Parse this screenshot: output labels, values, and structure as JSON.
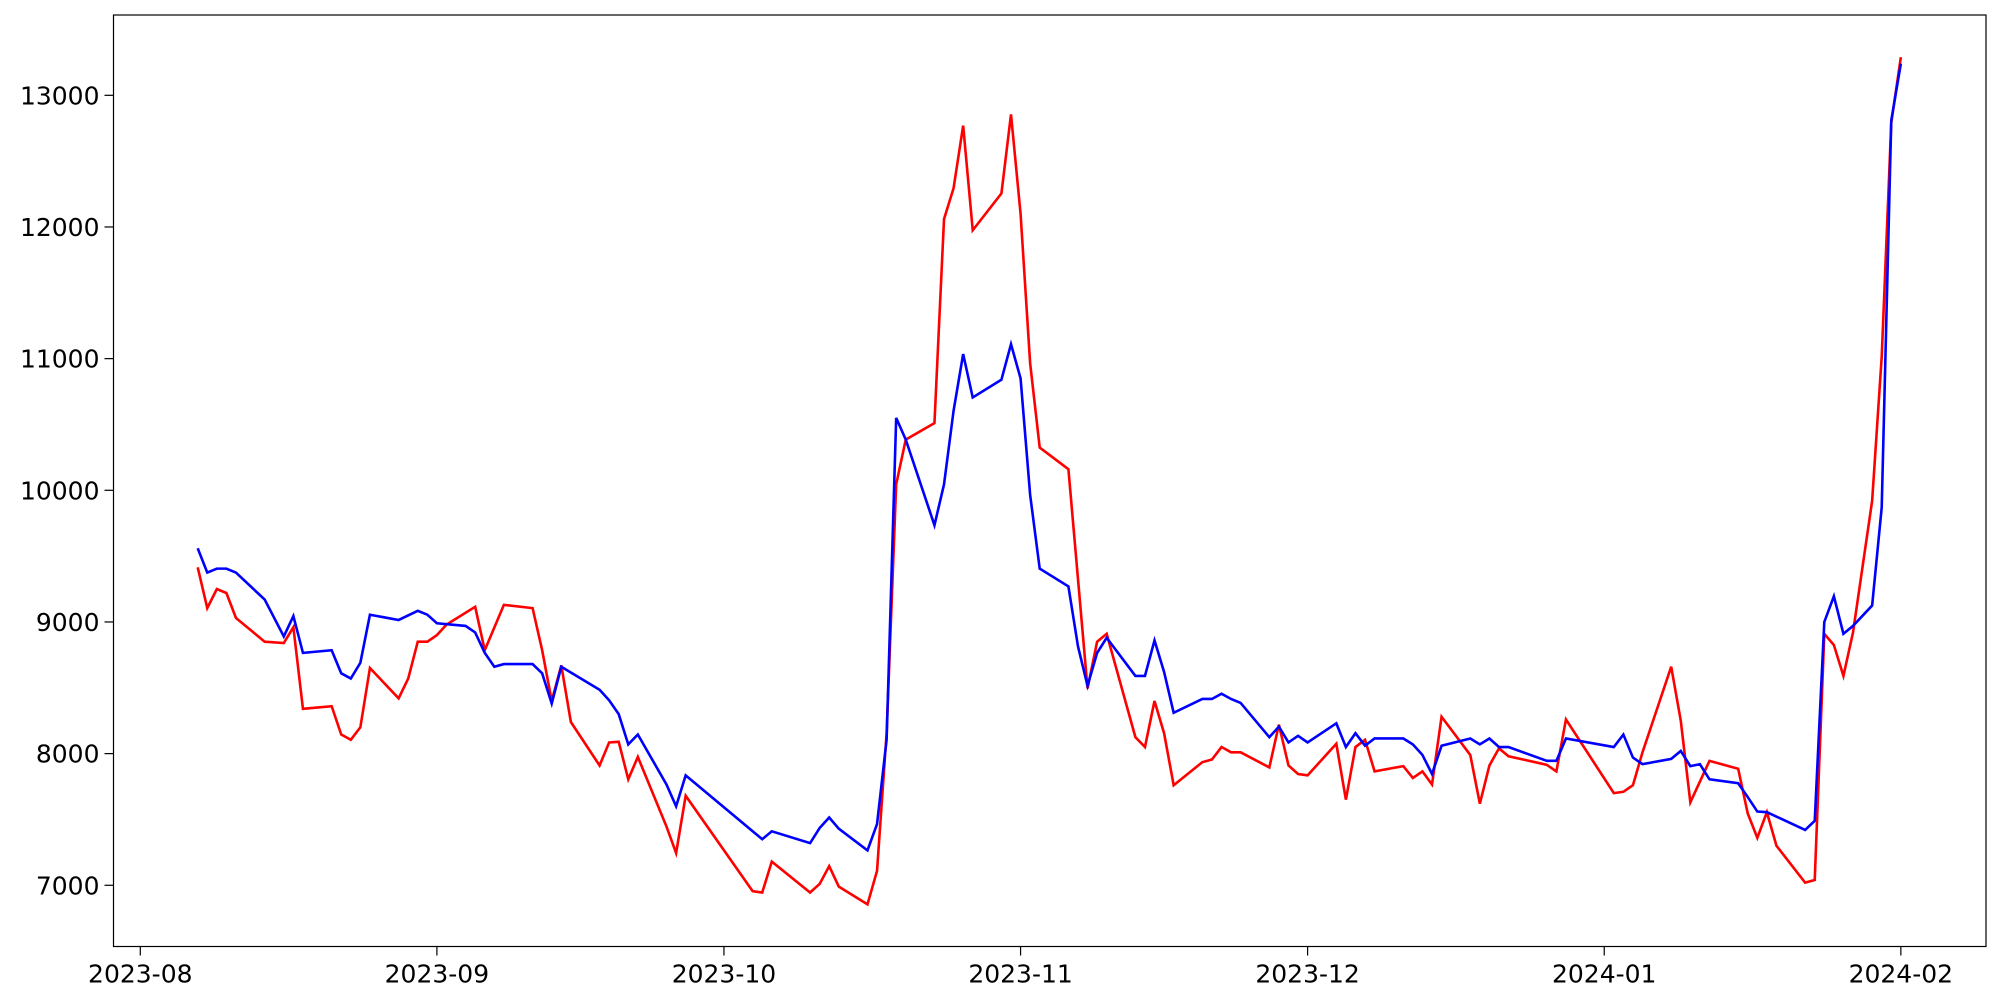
{
  "chart_data": {
    "type": "line",
    "xlim": [
      -2.8,
      192.9
    ],
    "xticks": [
      {
        "value": 0,
        "label": "2023-08"
      },
      {
        "value": 31,
        "label": "2023-09"
      },
      {
        "value": 61,
        "label": "2023-10"
      },
      {
        "value": 92,
        "label": "2023-11"
      },
      {
        "value": 122,
        "label": "2023-12"
      },
      {
        "value": 153,
        "label": "2024-01"
      },
      {
        "value": 184,
        "label": "2024-02"
      }
    ],
    "ylim": [
      6535,
      13610
    ],
    "yticks": [
      7000,
      8000,
      9000,
      10000,
      11000,
      12000,
      13000
    ],
    "grid": false,
    "series": [
      {
        "color": "#ff0000",
        "x": [
          6,
          7,
          8,
          9,
          10,
          13,
          15,
          16,
          17,
          20,
          21,
          22,
          23,
          24,
          27,
          28,
          29,
          30,
          31,
          32,
          35,
          36,
          38,
          41,
          42,
          43,
          44,
          45,
          48,
          49,
          50,
          51,
          52,
          55,
          56,
          57,
          64,
          65,
          66,
          70,
          71,
          72,
          73,
          76,
          77,
          78,
          79,
          80,
          83,
          84,
          85,
          86,
          87,
          90,
          91,
          92,
          93,
          94,
          97,
          99,
          100,
          101,
          104,
          105,
          106,
          107,
          108,
          111,
          112,
          113,
          114,
          115,
          118,
          119,
          120,
          121,
          122,
          125,
          126,
          127,
          128,
          129,
          132,
          133,
          134,
          135,
          136,
          139,
          140,
          141,
          142,
          143,
          147,
          148,
          149,
          154,
          155,
          156,
          157,
          160,
          161,
          162,
          164,
          167,
          168,
          169,
          170,
          171,
          174,
          175,
          176,
          177,
          178,
          179,
          181,
          182,
          183,
          184
        ],
        "values": [
          9415,
          9105,
          9250,
          9220,
          9030,
          8850,
          8840,
          8960,
          8340,
          8360,
          8145,
          8105,
          8200,
          8650,
          8420,
          8570,
          8850,
          8850,
          8900,
          8980,
          9115,
          8785,
          9130,
          9105,
          8785,
          8400,
          8670,
          8240,
          7910,
          8085,
          8090,
          7805,
          7975,
          7445,
          7245,
          7680,
          6955,
          6945,
          7180,
          6945,
          7010,
          7145,
          6990,
          6855,
          7110,
          8155,
          10045,
          10385,
          10510,
          12060,
          12295,
          12770,
          11975,
          12255,
          12855,
          12100,
          10965,
          10325,
          10160,
          8495,
          8850,
          8910,
          8125,
          8050,
          8400,
          8155,
          7760,
          7935,
          7955,
          8050,
          8010,
          8010,
          7895,
          8220,
          7910,
          7845,
          7835,
          8075,
          7650,
          8050,
          8105,
          7865,
          7905,
          7815,
          7865,
          7765,
          8280,
          7990,
          7620,
          7910,
          8040,
          7980,
          7915,
          7865,
          8260,
          7700,
          7710,
          7760,
          8010,
          8660,
          8250,
          7630,
          7945,
          7885,
          7545,
          7360,
          7555,
          7300,
          7020,
          7040,
          8910,
          8825,
          8590,
          8920,
          9920,
          11015,
          12790,
          13290
        ]
      },
      {
        "color": "#0000ff",
        "x": [
          6,
          7,
          8,
          9,
          10,
          13,
          15,
          16,
          17,
          20,
          21,
          22,
          23,
          24,
          27,
          29,
          30,
          31,
          34,
          35,
          36,
          37,
          38,
          41,
          42,
          43,
          44,
          48,
          49,
          50,
          51,
          52,
          55,
          56,
          57,
          64,
          65,
          66,
          70,
          71,
          72,
          73,
          76,
          77,
          78,
          79,
          80,
          83,
          84,
          85,
          86,
          87,
          90,
          91,
          92,
          93,
          94,
          97,
          98,
          99,
          100,
          101,
          104,
          105,
          106,
          107,
          108,
          111,
          112,
          113,
          114,
          115,
          118,
          119,
          120,
          121,
          122,
          125,
          126,
          127,
          128,
          129,
          132,
          133,
          134,
          135,
          136,
          139,
          140,
          141,
          142,
          143,
          147,
          148,
          149,
          154,
          155,
          156,
          157,
          160,
          161,
          162,
          163,
          164,
          167,
          168,
          169,
          170,
          174,
          175,
          176,
          177,
          178,
          179,
          181,
          182,
          183,
          184
        ],
        "values": [
          9560,
          9375,
          9405,
          9405,
          9375,
          9170,
          8890,
          9045,
          8765,
          8785,
          8610,
          8570,
          8690,
          9055,
          9015,
          9085,
          9055,
          8990,
          8970,
          8920,
          8765,
          8660,
          8680,
          8680,
          8610,
          8380,
          8660,
          8485,
          8405,
          8300,
          8070,
          8145,
          7765,
          7600,
          7835,
          7410,
          7350,
          7410,
          7320,
          7435,
          7515,
          7430,
          7265,
          7465,
          8105,
          10550,
          10385,
          9735,
          10045,
          10605,
          11035,
          10705,
          10840,
          11110,
          10850,
          9965,
          9405,
          9270,
          8815,
          8515,
          8765,
          8880,
          8590,
          8590,
          8860,
          8620,
          8310,
          8415,
          8415,
          8455,
          8415,
          8385,
          8125,
          8205,
          8085,
          8135,
          8085,
          8230,
          8050,
          8155,
          8060,
          8115,
          8115,
          8070,
          7990,
          7845,
          8060,
          8115,
          8070,
          8115,
          8050,
          8050,
          7945,
          7945,
          8115,
          8050,
          8145,
          7970,
          7920,
          7960,
          8020,
          7905,
          7920,
          7805,
          7775,
          7670,
          7560,
          7555,
          7420,
          7490,
          9000,
          9195,
          8910,
          8970,
          9125,
          9870,
          12810,
          13240
        ]
      }
    ]
  }
}
